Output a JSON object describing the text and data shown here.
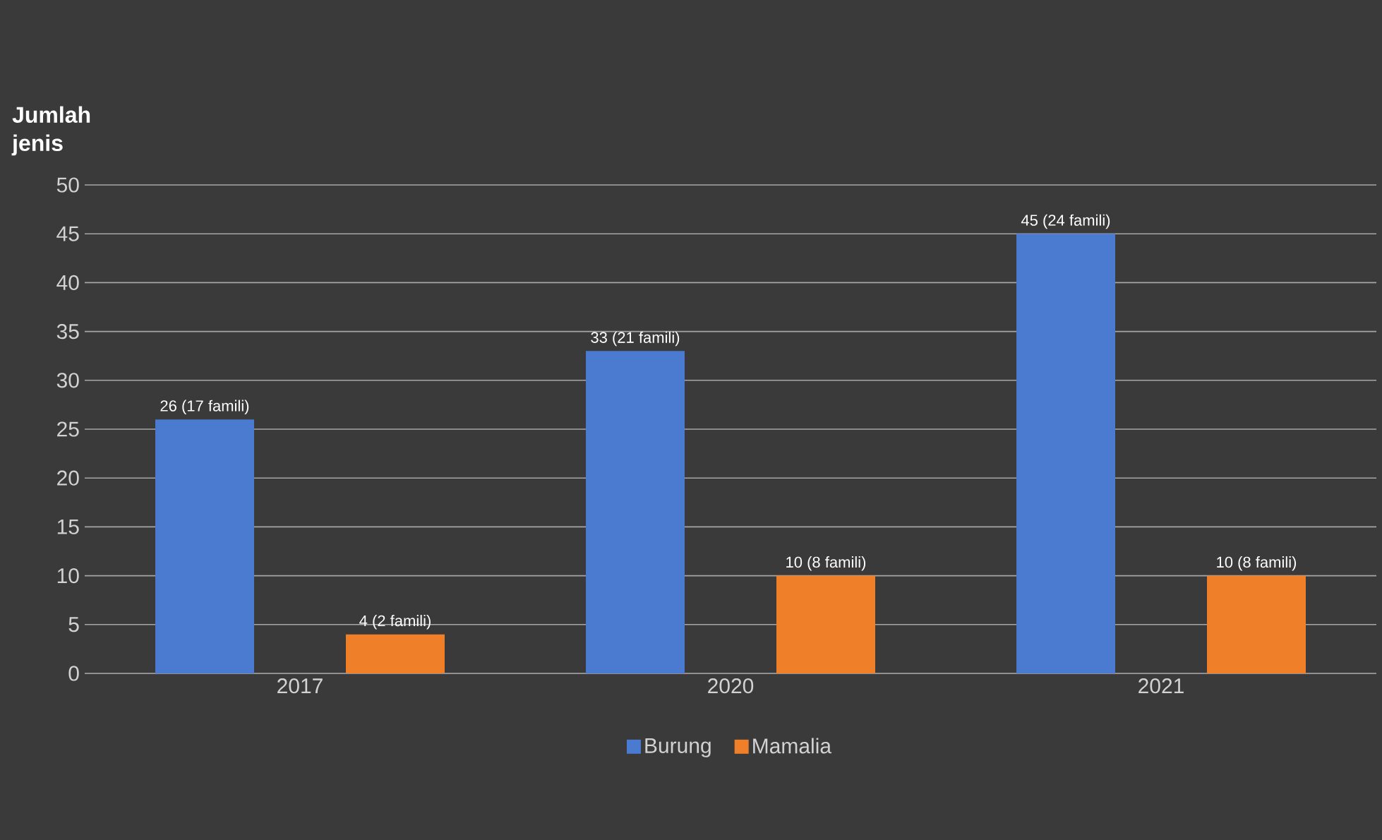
{
  "chart_data": {
    "type": "bar",
    "ylabel": "Jumlah jenis",
    "categories": [
      "2017",
      "2020",
      "2021"
    ],
    "series": [
      {
        "name": "Burung",
        "color": "#4a7bd0",
        "values": [
          26,
          33,
          45
        ],
        "value_labels": [
          "26 (17 famili)",
          "33 (21 famili)",
          "45 (24 famili)"
        ]
      },
      {
        "name": "Mamalia",
        "color": "#f07f2a",
        "values": [
          4,
          10,
          10
        ],
        "value_labels": [
          "4 (2 famili)",
          "10 (8 famili)",
          "10 (8 famili)"
        ]
      }
    ],
    "ylim": [
      0,
      50
    ],
    "yticks": [
      0,
      5,
      10,
      15,
      20,
      25,
      30,
      35,
      40,
      45,
      50
    ],
    "grid": "y",
    "legend": "bottom"
  }
}
